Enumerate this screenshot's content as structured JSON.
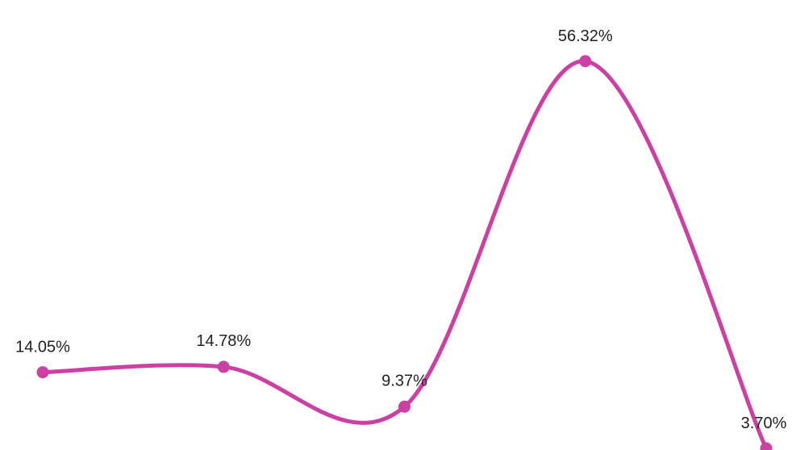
{
  "chart_data": {
    "type": "line",
    "smooth": true,
    "categories": [
      "",
      "",
      "",
      "",
      ""
    ],
    "series": [
      {
        "values": [
          14.05,
          14.78,
          9.37,
          56.32,
          3.7
        ],
        "labels": [
          "14.05%",
          "14.78%",
          "9.37%",
          "56.32%",
          "3.70%"
        ],
        "color": "#cc3fa3"
      }
    ],
    "ylim": [
      0,
      60
    ],
    "grid": false,
    "legend": "none"
  }
}
